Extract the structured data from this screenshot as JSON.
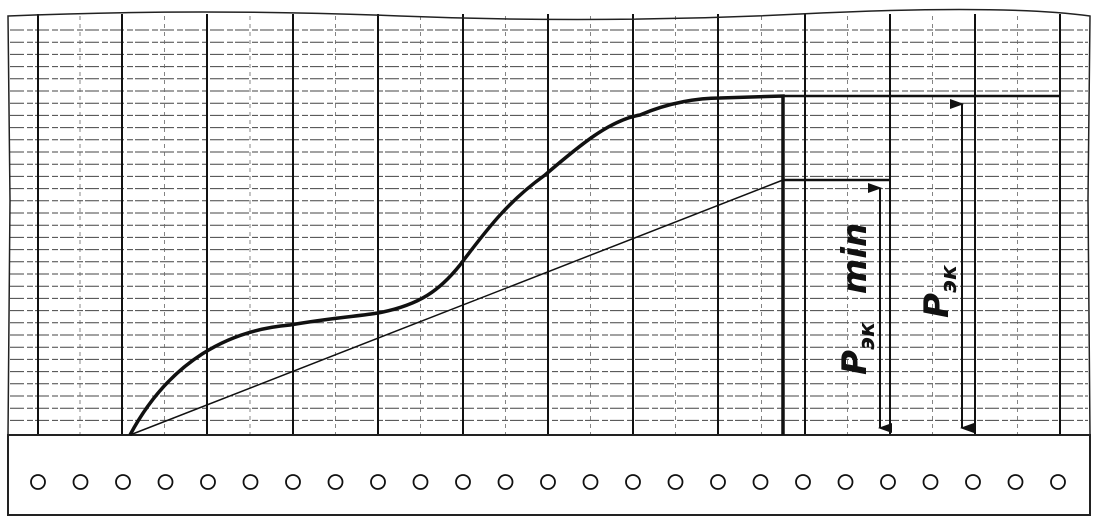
{
  "labels": [
    {
      "main": "P",
      "sub": "эк",
      "suffix": "min"
    },
    {
      "main": "P",
      "sub": "эк"
    }
  ]
}
